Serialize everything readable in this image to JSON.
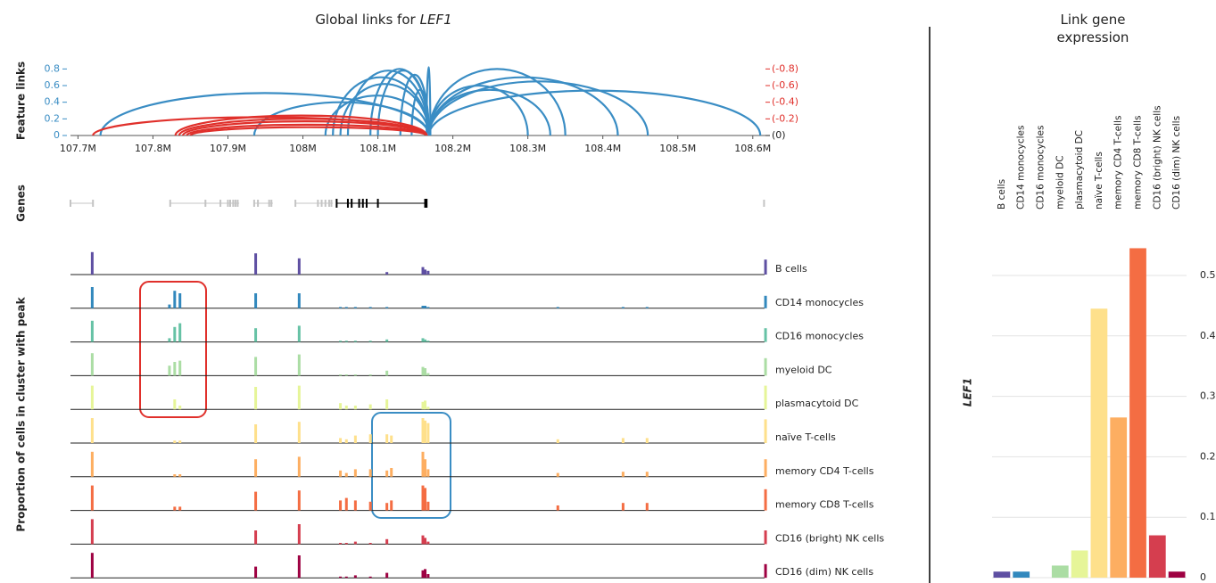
{
  "chart_data": [
    {
      "type": "arc",
      "title": "Global links for",
      "title_gene": "LEF1",
      "ylabel": "Feature links",
      "xlim": [
        107.69,
        108.63
      ],
      "xticks": [
        {
          "value": 107.7,
          "label": "107.7M"
        },
        {
          "value": 107.8,
          "label": "107.8M"
        },
        {
          "value": 107.9,
          "label": "107.9M"
        },
        {
          "value": 108.0,
          "label": "108M"
        },
        {
          "value": 108.1,
          "label": "108.1M"
        },
        {
          "value": 108.2,
          "label": "108.2M"
        },
        {
          "value": 108.3,
          "label": "108.3M"
        },
        {
          "value": 108.4,
          "label": "108.4M"
        },
        {
          "value": 108.5,
          "label": "108.5M"
        },
        {
          "value": 108.6,
          "label": "108.6M"
        }
      ],
      "ylim": [
        0,
        0.9
      ],
      "yticks": [
        0,
        0.2,
        0.4,
        0.6,
        0.8
      ],
      "y2lim": [
        0,
        -0.9
      ],
      "y2ticks": [
        {
          "value": 0,
          "label": "(0)"
        },
        {
          "value": -0.2,
          "label": "(-0.2)"
        },
        {
          "value": -0.4,
          "label": "(-0.4)"
        },
        {
          "value": -0.6,
          "label": "(-0.6)"
        },
        {
          "value": -0.8,
          "label": "(-0.8)"
        }
      ],
      "series": [
        {
          "color": "#3a8dc4",
          "axis": "y",
          "start": [
            107.73,
            107.935,
            108.03,
            108.04,
            108.05,
            108.06,
            108.09,
            108.1,
            108.13,
            108.145,
            108.165,
            108.168,
            108.168,
            108.168,
            108.168,
            108.168,
            108.168
          ],
          "end": [
            108.168,
            108.168,
            108.168,
            108.168,
            108.168,
            108.168,
            108.168,
            108.168,
            108.168,
            108.168,
            108.17,
            108.3,
            108.35,
            108.33,
            108.42,
            108.46,
            108.61
          ],
          "values": [
            0.51,
            0.4,
            0.48,
            0.7,
            0.62,
            0.78,
            0.8,
            0.78,
            0.73,
            0.55,
            0.82,
            0.6,
            0.8,
            0.55,
            0.7,
            0.65,
            0.54
          ]
        },
        {
          "color": "#e0302b",
          "axis": "y2",
          "start": [
            107.72,
            107.83,
            107.835,
            107.84,
            107.845,
            107.85
          ],
          "end": [
            108.165,
            108.165,
            108.165,
            108.165,
            108.165,
            108.165
          ],
          "values": [
            -0.22,
            -0.24,
            -0.2,
            -0.17,
            -0.13,
            -0.1
          ]
        }
      ]
    },
    {
      "type": "genes",
      "ylabel": "Genes",
      "genes": [
        {
          "start": 107.69,
          "end": 107.72,
          "color": "#c4c4c4",
          "exons": [
            107.69,
            107.72
          ]
        },
        {
          "start": 107.823,
          "end": 107.915,
          "color": "#c4c4c4",
          "exons": [
            107.823,
            107.87,
            107.89,
            107.9,
            107.903,
            107.907,
            107.91,
            107.913
          ]
        },
        {
          "start": 107.935,
          "end": 107.96,
          "color": "#c4c4c4",
          "exons": [
            107.935,
            107.94,
            107.955,
            107.958
          ]
        },
        {
          "start": 107.99,
          "end": 108.04,
          "color": "#c4c4c4",
          "exons": [
            107.99,
            108.02,
            108.025,
            108.03,
            108.035,
            108.038
          ]
        },
        {
          "start": 108.045,
          "end": 108.165,
          "color": "#000000",
          "exons": [
            108.045,
            108.06,
            108.065,
            108.075,
            108.08,
            108.085,
            108.1,
            108.163,
            108.165
          ]
        },
        {
          "start": 108.615,
          "end": 108.616,
          "color": "#c4c4c4",
          "exons": [
            108.615
          ]
        }
      ]
    },
    {
      "type": "peaks",
      "ylabel": "Proportion of cells in cluster with peak",
      "ylim": [
        0,
        1
      ],
      "x": [
        107.719,
        107.822,
        107.829,
        107.836,
        107.88,
        107.937,
        107.995,
        108.05,
        108.058,
        108.07,
        108.09,
        108.112,
        108.118,
        108.16,
        108.163,
        108.167,
        108.34,
        108.427,
        108.459,
        108.617
      ],
      "series": [
        {
          "name": "B cells",
          "color": "#5e4fa2",
          "values": [
            0.9,
            0,
            0,
            0,
            0,
            0.85,
            0.65,
            0,
            0,
            0,
            0,
            0.1,
            0,
            0.3,
            0.2,
            0.15,
            0,
            0,
            0,
            0.6
          ]
        },
        {
          "name": "CD14 monocycles",
          "color": "#3288bd",
          "values": [
            0.85,
            0.15,
            0.7,
            0.6,
            0,
            0.6,
            0.6,
            0.05,
            0.05,
            0.05,
            0.05,
            0.05,
            0,
            0.1,
            0.1,
            0.05,
            0.05,
            0.05,
            0.05,
            0.5
          ]
        },
        {
          "name": "CD16 monocycles",
          "color": "#66c2a5",
          "values": [
            0.85,
            0.15,
            0.6,
            0.75,
            0,
            0.55,
            0.65,
            0.05,
            0.05,
            0.05,
            0.05,
            0.1,
            0,
            0.15,
            0.1,
            0.05,
            0,
            0,
            0,
            0.55
          ]
        },
        {
          "name": "myeloid DC",
          "color": "#abdda4",
          "values": [
            0.9,
            0.4,
            0.55,
            0.6,
            0,
            0.75,
            0.85,
            0.05,
            0.05,
            0.05,
            0.05,
            0.2,
            0,
            0.35,
            0.3,
            0.1,
            0,
            0,
            0,
            0.7
          ]
        },
        {
          "name": "plasmacytoid DC",
          "color": "#e6f598",
          "values": [
            0.95,
            0,
            0.4,
            0.15,
            0,
            0.9,
            0.95,
            0.25,
            0.15,
            0.15,
            0.2,
            0.4,
            0,
            0.3,
            0.35,
            0.1,
            0,
            0,
            0,
            0.95
          ]
        },
        {
          "name": "naïve T-cells",
          "color": "#fee08b",
          "values": [
            1,
            0,
            0.1,
            0.1,
            0,
            0.75,
            0.85,
            0.2,
            0.15,
            0.3,
            0.35,
            0.35,
            0.3,
            1,
            0.9,
            0.8,
            0.15,
            0.2,
            0.2,
            0.95
          ]
        },
        {
          "name": "memory CD4 T-cells",
          "color": "#fdae61",
          "values": [
            1,
            0,
            0.1,
            0.1,
            0,
            0.7,
            0.8,
            0.25,
            0.15,
            0.3,
            0.3,
            0.25,
            0.35,
            1,
            0.7,
            0.3,
            0.15,
            0.2,
            0.2,
            0.7
          ]
        },
        {
          "name": "memory CD8 T-cells",
          "color": "#f46d43",
          "values": [
            1,
            0,
            0.15,
            0.15,
            0,
            0.75,
            0.8,
            0.4,
            0.5,
            0.4,
            0.35,
            0.3,
            0.4,
            1,
            0.9,
            0.35,
            0.2,
            0.3,
            0.3,
            0.85
          ]
        },
        {
          "name": "CD16 (bright) NK cells",
          "color": "#d53e4f",
          "values": [
            1,
            0,
            0,
            0,
            0,
            0.55,
            0.8,
            0.05,
            0.05,
            0.1,
            0.05,
            0.2,
            0,
            0.35,
            0.25,
            0.1,
            0,
            0,
            0,
            0.55
          ]
        },
        {
          "name": "CD16 (dim) NK cells",
          "color": "#9e0142",
          "values": [
            1,
            0,
            0,
            0,
            0,
            0.45,
            0.9,
            0.05,
            0.05,
            0.1,
            0.05,
            0.2,
            0,
            0.3,
            0.35,
            0.15,
            0,
            0,
            0,
            0.55
          ]
        }
      ]
    },
    {
      "type": "bar",
      "title": "Link gene expression",
      "ylabel": "LEF1",
      "categories": [
        "B cells",
        "CD14 monocycles",
        "CD16 monocycles",
        "myeloid DC",
        "plasmacytoid DC",
        "naïve T-cells",
        "memory CD4 T-cells",
        "memory CD8 T-cells",
        "CD16 (bright) NK cells",
        "CD16 (dim) NK cells"
      ],
      "values": [
        0.01,
        0.01,
        0,
        0.02,
        0.045,
        0.445,
        0.265,
        0.545,
        0.07,
        0.01
      ],
      "colors": [
        "#5e4fa2",
        "#3288bd",
        "#66c2a5",
        "#abdda4",
        "#e6f598",
        "#fee08b",
        "#fdae61",
        "#f46d43",
        "#d53e4f",
        "#9e0142"
      ],
      "ylim": [
        0,
        0.57
      ],
      "yticks": [
        0,
        0.1,
        0.2,
        0.3,
        0.4,
        0.5
      ],
      "grid": true
    }
  ]
}
